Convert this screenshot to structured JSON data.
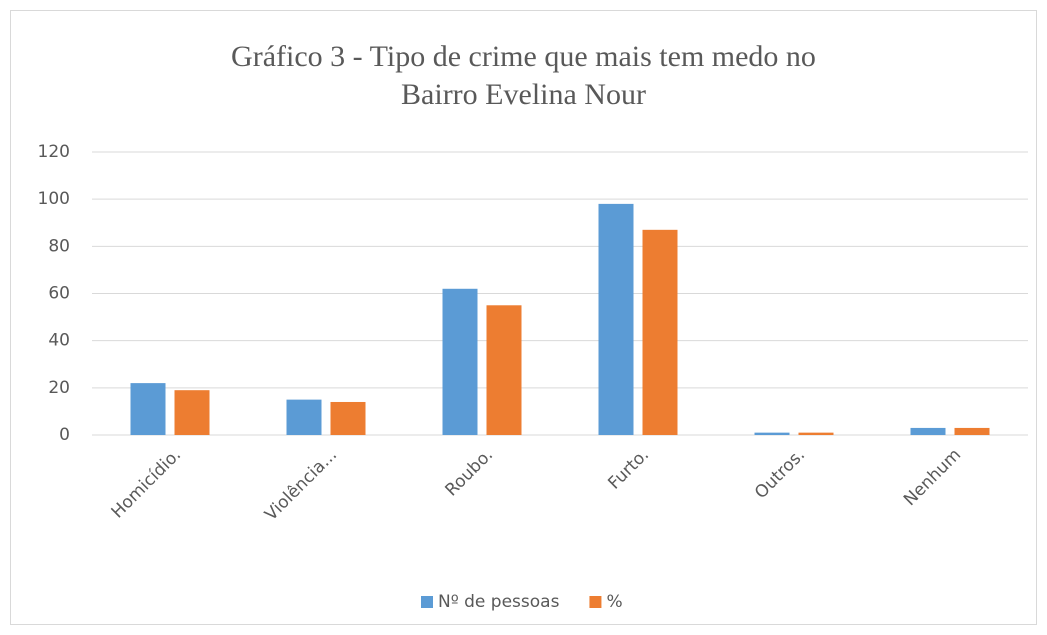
{
  "chart_data": {
    "type": "bar",
    "title": "Gráfico 3 - Tipo de crime que mais tem medo no Bairro Evelina Nour",
    "categories": [
      "Homicídio.",
      "Violência...",
      "Roubo.",
      "Furto.",
      "Outros.",
      "Nenhum"
    ],
    "series": [
      {
        "name": "Nº de pessoas",
        "color": "#5b9bd5",
        "values": [
          22,
          15,
          62,
          98,
          1,
          3
        ]
      },
      {
        "name": "%",
        "color": "#ed7d31",
        "values": [
          19,
          14,
          55,
          87,
          1,
          3
        ]
      }
    ],
    "ylim": [
      0,
      120
    ],
    "yticks": [
      0,
      20,
      40,
      60,
      80,
      100,
      120
    ],
    "grid": true,
    "legend": "bottom"
  }
}
